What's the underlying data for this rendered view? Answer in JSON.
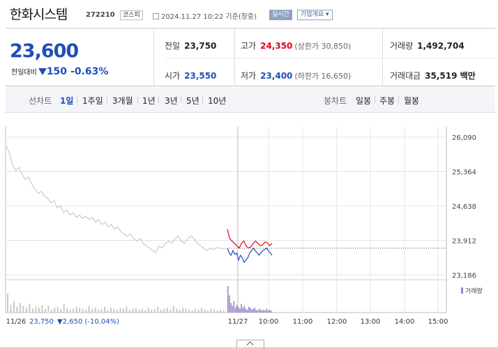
{
  "header": {
    "name": "한화시스템",
    "code": "272210",
    "market": "코스피",
    "time": "2024.11.27 10:22  기준(장중)",
    "realtime": "실시간",
    "company_overview": "기업개요"
  },
  "summary": {
    "price": "23,600",
    "change_label": "전일대비",
    "change_amount": "150",
    "change_pct": "-0.63%",
    "prev_close_label": "전일",
    "prev_close": "23,750",
    "open_label": "시가",
    "open": "23,550",
    "high_label": "고가",
    "high": "24,350",
    "upper_limit": "(상한가 30,850)",
    "low_label": "저가",
    "low": "23,400",
    "lower_limit": "(하한가 16,650)",
    "volume_label": "거래량",
    "volume": "1,492,704",
    "value_label": "거래대금",
    "value": "35,519 백만"
  },
  "periods": {
    "line_label": "선차트",
    "items": [
      "1일",
      "1주일",
      "3개월",
      "1년",
      "3년",
      "5년",
      "10년"
    ],
    "active": "1일",
    "candle_label": "봉차트",
    "candle_items": [
      "일봉",
      "주봉",
      "월봉"
    ]
  },
  "chart_data": {
    "type": "line",
    "y_ticks": [
      "26,090",
      "25,364",
      "24,638",
      "23,912",
      "23,186"
    ],
    "ylim": [
      23186,
      26090
    ],
    "x_ticks": [
      "11/26",
      "11/27",
      "10:00",
      "11:00",
      "12:00",
      "13:00",
      "14:00",
      "15:00"
    ],
    "reference_price": 23750,
    "prev_day_summary": {
      "date": "11/26",
      "close": "23,750",
      "change": "2,650",
      "pct": "(-10.04%)"
    },
    "volume_legend": "거래량",
    "colors": {
      "prev_line": "#c0c0c0",
      "up": "#e6001e",
      "down": "#1e4fb8",
      "volume_prev": "#c8c8c8",
      "volume_today": "#9b88c4",
      "grid": "#e4e4e4"
    },
    "series": [
      {
        "values": [
          25900,
          25750,
          25500,
          25380,
          25450,
          25300,
          25200,
          25250,
          25100,
          25000,
          24900,
          24950,
          24850,
          24800,
          24700,
          24750,
          24600,
          24650,
          24500,
          24550,
          24450,
          24500,
          24400,
          24450,
          24380,
          24420,
          24350,
          24400,
          24300,
          24350,
          24250,
          24300,
          24200,
          24250,
          24150,
          24200,
          24100,
          24050,
          24000,
          24050,
          23950,
          23900,
          23950,
          23850,
          23800,
          23750,
          23700,
          23650,
          23800,
          23750,
          23850,
          23900,
          23850,
          23950,
          24000,
          23900,
          23850,
          23950,
          24000,
          23950,
          23850,
          23800,
          23750,
          23700,
          23750,
          23720,
          23760,
          23750,
          23740,
          23750
        ]
      },
      {
        "values": [
          24150,
          23950,
          23900,
          23850,
          23800,
          23750,
          23850,
          23900,
          23800,
          23750,
          23780,
          23850,
          23900,
          23850,
          23800,
          23820,
          23880,
          23860,
          23800,
          23850
        ]
      },
      {
        "values": [
          23750,
          23650,
          23600,
          23700,
          23620,
          23650,
          23500,
          23600,
          23550,
          23450,
          23500,
          23550,
          23650,
          23700,
          23750,
          23700,
          23650,
          23600,
          23650,
          23700,
          23720,
          23750,
          23700,
          23650,
          23600
        ]
      }
    ],
    "volume": {
      "prev": [
        20,
        8,
        12,
        6,
        10,
        7,
        5,
        9,
        4,
        6,
        5,
        8,
        4,
        7,
        3,
        5,
        6,
        4,
        9,
        5,
        3,
        4,
        6,
        5,
        4,
        3,
        7,
        4,
        5,
        3,
        4,
        6,
        3,
        5,
        4,
        3,
        5,
        4,
        6,
        3,
        4,
        5,
        3,
        4,
        2,
        5,
        3,
        4,
        6,
        3,
        4,
        5,
        3,
        7,
        4,
        3,
        5,
        4,
        3,
        2,
        4,
        3,
        5,
        3,
        2,
        4,
        3,
        2,
        3,
        2
      ],
      "today": [
        28,
        18,
        10,
        7,
        12,
        5,
        8,
        6,
        4,
        9,
        5,
        7,
        4,
        3,
        6,
        5,
        3,
        4,
        5,
        3,
        2,
        4,
        3,
        2,
        3,
        2,
        4,
        2,
        3,
        2
      ]
    }
  }
}
